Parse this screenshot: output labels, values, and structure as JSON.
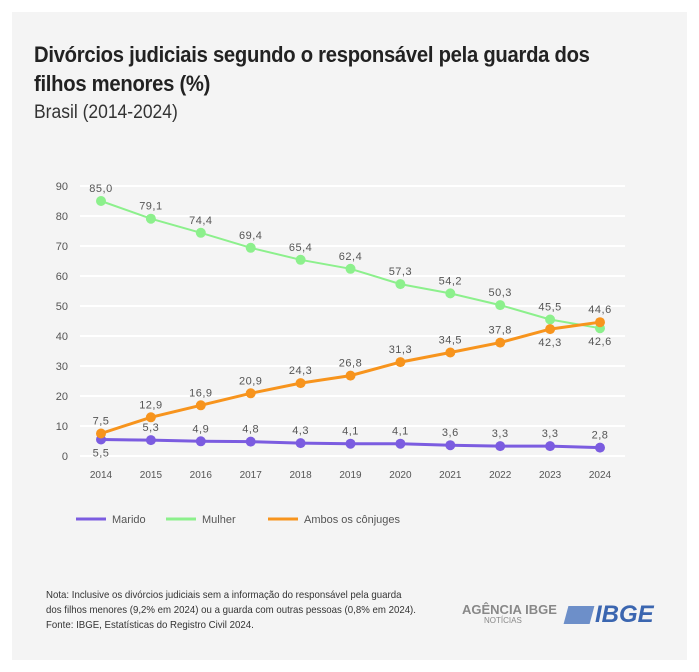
{
  "title": "Divórcios judiciais segundo o responsável pela guarda dos filhos menores (%)",
  "subtitle": "Brasil (2014-2024)",
  "chart_data": {
    "type": "line",
    "title": "Divórcios judiciais segundo o responsável pela guarda dos filhos menores (%)",
    "subtitle": "Brasil (2014-2024)",
    "x": [
      "2014",
      "2015",
      "2016",
      "2017",
      "2018",
      "2019",
      "2020",
      "2021",
      "2022",
      "2023",
      "2024"
    ],
    "ylim": [
      0,
      90
    ],
    "yticks": [
      0,
      10,
      20,
      30,
      40,
      50,
      60,
      70,
      80,
      90
    ],
    "grid": true,
    "legend": "bottom-left",
    "series": [
      {
        "name": "Marido",
        "color": "#7b5ce0",
        "values": [
          5.5,
          5.3,
          4.9,
          4.8,
          4.3,
          4.1,
          4.1,
          3.6,
          3.3,
          3.3,
          2.8
        ],
        "labels": [
          "5,5",
          "5,3",
          "4,9",
          "4,8",
          "4,3",
          "4,1",
          "4,1",
          "3,6",
          "3,3",
          "3,3",
          "2,8"
        ]
      },
      {
        "name": "Mulher",
        "color": "#8cf08c",
        "values": [
          85.0,
          79.1,
          74.4,
          69.4,
          65.4,
          62.4,
          57.3,
          54.2,
          50.3,
          45.5,
          42.6
        ],
        "labels": [
          "85,0",
          "79,1",
          "74,4",
          "69,4",
          "65,4",
          "62,4",
          "57,3",
          "54,2",
          "50,3",
          "45,5",
          "42,6"
        ]
      },
      {
        "name": "Ambos os cônjuges",
        "color": "#f7941d",
        "values": [
          7.5,
          12.9,
          16.9,
          20.9,
          24.3,
          26.8,
          31.3,
          34.5,
          37.8,
          42.3,
          44.6
        ],
        "labels": [
          "7,5",
          "12,9",
          "16,9",
          "20,9",
          "24,3",
          "26,8",
          "31,3",
          "34,5",
          "37,8",
          "42,3",
          "44,6"
        ]
      }
    ]
  },
  "note": {
    "line1": "Nota: Inclusive os divórcios judiciais sem a informação do responsável pela guarda",
    "line2": "dos filhos menores (9,2% em 2024) ou a guarda com outras pessoas (0,8% em 2024).",
    "source": "Fonte: IBGE, Estatísticas do Registro Civil 2024."
  },
  "logos": {
    "agencia": "AGÊNCIA IBGE",
    "agencia_sub": "NOTÍCIAS",
    "ibge": "IBGE"
  }
}
